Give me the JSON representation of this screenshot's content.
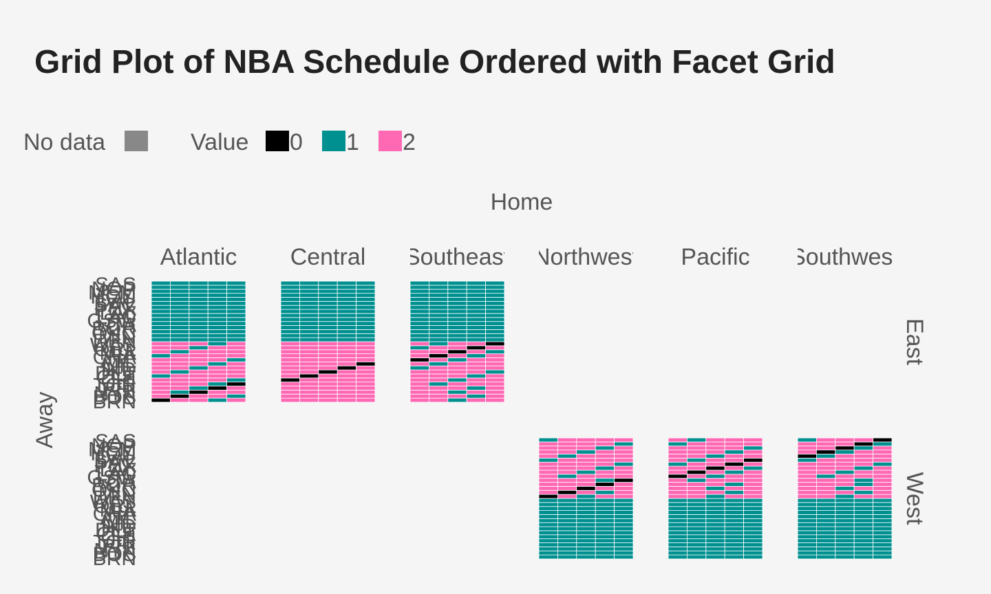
{
  "chart_data": {
    "type": "heatmap",
    "title": "Grid Plot of NBA Schedule Ordered with Facet Grid",
    "xlabel": "Home",
    "ylabel": "Away",
    "legend": {
      "placement": "top-left",
      "na_label": "No data",
      "title": "Value",
      "levels": [
        "0",
        "1",
        "2"
      ]
    },
    "colors": {
      "na": "#888888",
      "0": "#000000",
      "1": "#009090",
      "2": "#ff69b4",
      "background": "#f5f5f5",
      "cell_border": "#ffffff"
    },
    "col_facets": [
      "Atlantic",
      "Central",
      "Southeast",
      "Northwest",
      "Pacific",
      "Southwest"
    ],
    "row_facets": [
      "East",
      "West"
    ],
    "teams_per_division": 5,
    "away_teams_ordered": [
      "BRN",
      "BOS",
      "NYK",
      "PHI",
      "TOR",
      "CHI",
      "CLE",
      "DET",
      "IND",
      "MIL",
      "ATL",
      "CHA",
      "MIA",
      "ORL",
      "WAS",
      "DEN",
      "MIN",
      "OKC",
      "POR",
      "UTA",
      "GSW",
      "LAC",
      "LAL",
      "PHX",
      "SAC",
      "DAL",
      "HOU",
      "MEM",
      "NOP",
      "SAS"
    ],
    "rule": "value = 0 when away team equals home team; 1 when away and home are in different conferences; 2 when in the same conference",
    "blank_panels": [
      "West-Atlantic",
      "West-Central",
      "West-Southeast",
      "East-Northwest",
      "East-Pacific",
      "East-Southwest"
    ],
    "same_conference_exceptions_value_1": [
      {
        "conf": "East",
        "away_rows": [
          [
            3,
            12,
            17,
            22,
            27
          ],
          [
            4,
            13,
            18,
            23,
            28
          ],
          [
            1,
            12,
            17,
            22,
            27
          ],
          [
            2,
            13,
            18,
            23,
            28
          ],
          [
            3,
            11,
            18,
            21,
            28
          ],
          [
            4,
            12,
            16,
            22,
            26
          ],
          [
            0,
            13,
            17,
            23,
            27
          ],
          [
            1,
            14,
            18,
            24,
            28
          ],
          [
            2,
            10,
            19,
            20,
            29
          ],
          [
            3,
            11,
            15,
            21,
            25
          ],
          [
            4,
            12,
            16,
            22,
            26
          ],
          [
            0,
            13,
            17,
            23,
            27
          ],
          [
            1,
            14,
            18,
            24,
            28
          ],
          [
            2,
            10,
            19,
            20,
            29
          ],
          [
            3,
            11,
            15,
            21,
            25
          ]
        ]
      },
      {
        "conf": "West",
        "away_rows": [
          [
            3,
            12,
            17,
            22,
            27
          ],
          [
            4,
            13,
            18,
            23,
            28
          ],
          [
            1,
            12,
            17,
            22,
            27
          ],
          [
            2,
            13,
            18,
            23,
            28
          ],
          [
            3,
            11,
            18,
            21,
            28
          ],
          [
            4,
            12,
            16,
            22,
            26
          ],
          [
            0,
            13,
            17,
            23,
            27
          ],
          [
            1,
            14,
            18,
            24,
            28
          ],
          [
            2,
            10,
            19,
            20,
            29
          ],
          [
            3,
            11,
            15,
            21,
            25
          ],
          [
            4,
            12,
            16,
            22,
            26
          ],
          [
            0,
            13,
            17,
            23,
            27
          ],
          [
            1,
            14,
            18,
            24,
            28
          ],
          [
            2,
            10,
            19,
            20,
            29
          ],
          [
            3,
            11,
            15,
            21,
            25
          ]
        ]
      }
    ]
  }
}
